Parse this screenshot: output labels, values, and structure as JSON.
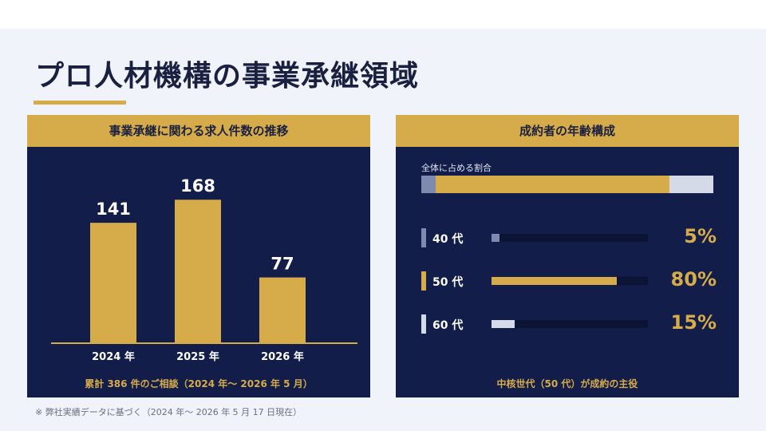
{
  "slide": {
    "title": "プロ人材機構の事業承継領域",
    "footnote": "※ 弊社実績データに基づく（2024 年～ 2026 年 5 月 17 日現在）"
  },
  "colors": {
    "navy": "#121d4a",
    "gold": "#d6ab49",
    "steel": "#7f8ab0",
    "pale": "#d5dae8"
  },
  "chart_data": [
    {
      "type": "bar",
      "title": "事業承継に関わる求人件数の推移",
      "categories": [
        "2024 年",
        "2025 年",
        "2026 年"
      ],
      "values": [
        141,
        168,
        77
      ],
      "data_labels": [
        "141",
        "168",
        "77"
      ],
      "ylim": [
        0,
        200
      ],
      "xlabel": "",
      "ylabel": "",
      "grid": false,
      "summary": "累計 386 件のご相談（2024 年～ 2026 年 5 月）"
    },
    {
      "type": "bar",
      "title": "成約者の年齢構成",
      "share_label": "全体に占める割合",
      "categories": [
        "40 代",
        "50 代",
        "60 代"
      ],
      "values": [
        5,
        80,
        15
      ],
      "data_labels": [
        "5%",
        "80%",
        "15%"
      ],
      "unit": "%",
      "xlim": [
        0,
        100
      ],
      "segment_colors": [
        "#7f8ab0",
        "#d6ab49",
        "#d5dae8"
      ],
      "summary": "中核世代（50 代）が成約の主役"
    }
  ]
}
